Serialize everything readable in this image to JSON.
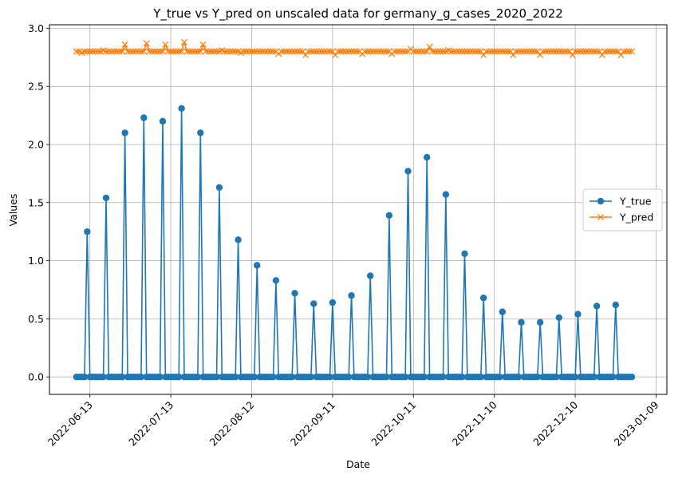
{
  "chart_data": {
    "type": "line",
    "title": "Y_true vs Y_pred on unscaled data for germany_g_cases_2020_2022",
    "xlabel": "Date",
    "ylabel": "Values",
    "x_range": [
      "2022-05-29",
      "2023-01-13"
    ],
    "ylim": [
      -0.15,
      3.03
    ],
    "x_tick_labels": [
      "2022-06-13",
      "2022-07-13",
      "2022-08-12",
      "2022-09-11",
      "2022-10-11",
      "2022-11-10",
      "2022-12-10",
      "2023-01-09"
    ],
    "y_tick_labels": [
      "0.0",
      "0.5",
      "1.0",
      "1.5",
      "2.0",
      "2.5",
      "3.0"
    ],
    "grid": true,
    "legend_position": "center-right",
    "date_range": {
      "start": "2022-06-08",
      "end": "2022-12-31"
    },
    "series": [
      {
        "name": "Y_true",
        "color": "#1f77b4",
        "marker": "circle",
        "baseline": 0.0,
        "peaks": [
          {
            "date": "2022-06-12",
            "value": 1.25
          },
          {
            "date": "2022-06-19",
            "value": 1.54
          },
          {
            "date": "2022-06-26",
            "value": 2.1
          },
          {
            "date": "2022-07-03",
            "value": 2.23
          },
          {
            "date": "2022-07-10",
            "value": 2.2
          },
          {
            "date": "2022-07-17",
            "value": 2.31
          },
          {
            "date": "2022-07-24",
            "value": 2.1
          },
          {
            "date": "2022-07-31",
            "value": 1.63
          },
          {
            "date": "2022-08-07",
            "value": 1.18
          },
          {
            "date": "2022-08-14",
            "value": 0.96
          },
          {
            "date": "2022-08-21",
            "value": 0.83
          },
          {
            "date": "2022-08-28",
            "value": 0.72
          },
          {
            "date": "2022-09-04",
            "value": 0.63
          },
          {
            "date": "2022-09-11",
            "value": 0.64
          },
          {
            "date": "2022-09-18",
            "value": 0.7
          },
          {
            "date": "2022-09-25",
            "value": 0.87
          },
          {
            "date": "2022-10-02",
            "value": 1.39
          },
          {
            "date": "2022-10-09",
            "value": 1.77
          },
          {
            "date": "2022-10-16",
            "value": 1.89
          },
          {
            "date": "2022-10-23",
            "value": 1.57
          },
          {
            "date": "2022-10-30",
            "value": 1.06
          },
          {
            "date": "2022-11-06",
            "value": 0.68
          },
          {
            "date": "2022-11-13",
            "value": 0.56
          },
          {
            "date": "2022-11-20",
            "value": 0.47
          },
          {
            "date": "2022-11-27",
            "value": 0.47
          },
          {
            "date": "2022-12-04",
            "value": 0.51
          },
          {
            "date": "2022-12-11",
            "value": 0.54
          },
          {
            "date": "2022-12-18",
            "value": 0.61
          },
          {
            "date": "2022-12-25",
            "value": 0.62
          }
        ]
      },
      {
        "name": "Y_pred",
        "color": "#ff7f0e",
        "marker": "x",
        "baseline": 2.8,
        "variations": [
          {
            "date": "2022-06-10",
            "value": 2.79
          },
          {
            "date": "2022-06-18",
            "value": 2.81
          },
          {
            "date": "2022-06-26",
            "value": 2.86
          },
          {
            "date": "2022-07-04",
            "value": 2.87
          },
          {
            "date": "2022-07-11",
            "value": 2.86
          },
          {
            "date": "2022-07-18",
            "value": 2.88
          },
          {
            "date": "2022-07-25",
            "value": 2.86
          },
          {
            "date": "2022-08-01",
            "value": 2.81
          },
          {
            "date": "2022-08-08",
            "value": 2.79
          },
          {
            "date": "2022-08-22",
            "value": 2.78
          },
          {
            "date": "2022-09-01",
            "value": 2.77
          },
          {
            "date": "2022-09-12",
            "value": 2.77
          },
          {
            "date": "2022-09-22",
            "value": 2.78
          },
          {
            "date": "2022-10-03",
            "value": 2.78
          },
          {
            "date": "2022-10-10",
            "value": 2.82
          },
          {
            "date": "2022-10-17",
            "value": 2.84
          },
          {
            "date": "2022-10-24",
            "value": 2.81
          },
          {
            "date": "2022-11-06",
            "value": 2.77
          },
          {
            "date": "2022-11-17",
            "value": 2.77
          },
          {
            "date": "2022-11-27",
            "value": 2.77
          },
          {
            "date": "2022-12-09",
            "value": 2.77
          },
          {
            "date": "2022-12-20",
            "value": 2.77
          },
          {
            "date": "2022-12-27",
            "value": 2.77
          }
        ]
      }
    ]
  }
}
